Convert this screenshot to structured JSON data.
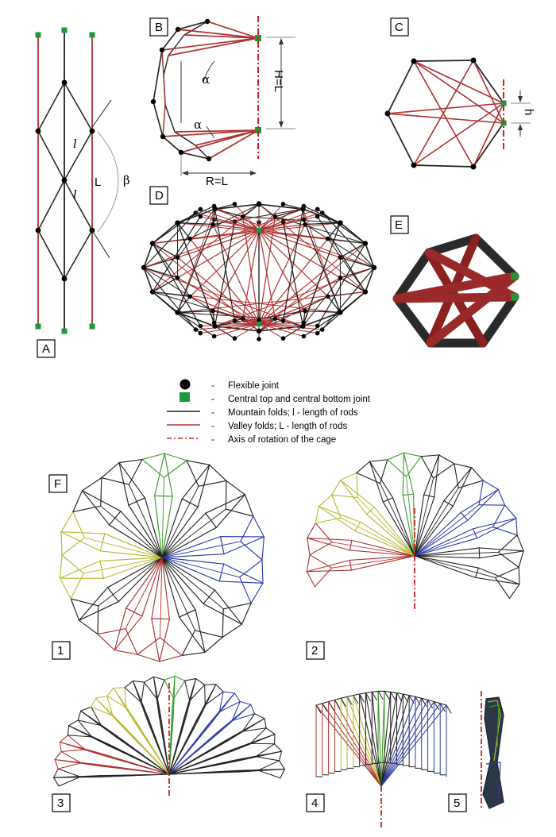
{
  "colors": {
    "mountain": "#1f1f1f",
    "valley": "#b03030",
    "joint": "#000000",
    "central_joint": "#1a9a3a",
    "axis": "#d02020",
    "yellow_unit": "#b8b830",
    "green_unit": "#3a9a2a",
    "blue_unit": "#2a3aa8"
  },
  "panels": {
    "A": "A",
    "B": "B",
    "C": "C",
    "D": "D",
    "E": "E",
    "F": "F"
  },
  "states": [
    "1",
    "2",
    "3",
    "4",
    "5"
  ],
  "labels_a": {
    "l1": "l",
    "l2": "l",
    "L": "L",
    "beta": "β"
  },
  "labels_b": {
    "alpha1": "α",
    "alpha2": "α",
    "H": "H=L",
    "R": "R=L"
  },
  "labels_c": {
    "h": "h"
  },
  "legend": [
    {
      "icon": "flexible-joint-icon",
      "dash": "-",
      "text": "Flexible joint"
    },
    {
      "icon": "central-joint-icon",
      "dash": "-",
      "text": "Central top and central bottom joint"
    },
    {
      "icon": "mountain-fold-icon",
      "dash": "-",
      "text": "Mountain folds; l - length of rods"
    },
    {
      "icon": "valley-fold-icon",
      "dash": "-",
      "text": "Valley folds; L - length of rods"
    },
    {
      "icon": "rotation-axis-icon",
      "dash": "-",
      "text": "Axis of rotation of the cage"
    }
  ]
}
